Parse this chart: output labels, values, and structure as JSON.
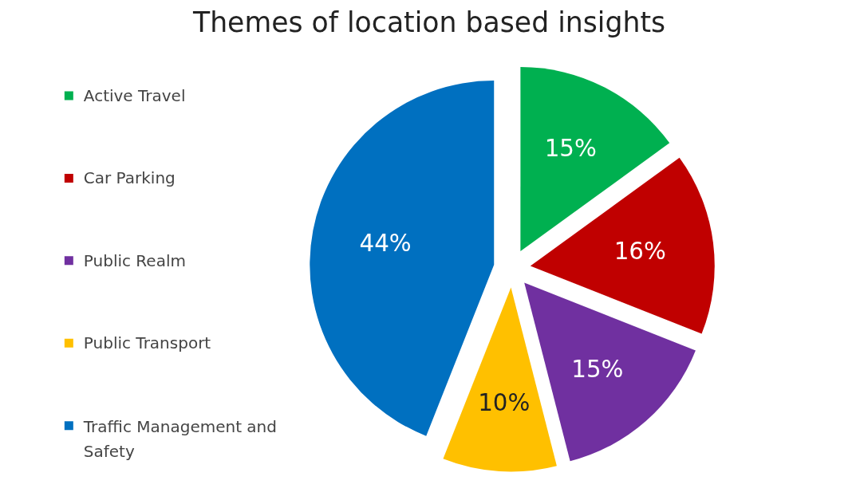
{
  "chart_data": {
    "type": "pie",
    "title": "Themes of location based insights",
    "categories": [
      "Active Travel",
      "Car Parking",
      "Public Realm",
      "Public Transport",
      "Traffic Management and Safety"
    ],
    "values": [
      15,
      16,
      15,
      10,
      44
    ],
    "colors": [
      "#00b050",
      "#c00000",
      "#7030a0",
      "#ffc000",
      "#0070c0"
    ],
    "value_labels": [
      "15%",
      "16%",
      "15%",
      "10%",
      "44%"
    ],
    "legend": "left"
  }
}
